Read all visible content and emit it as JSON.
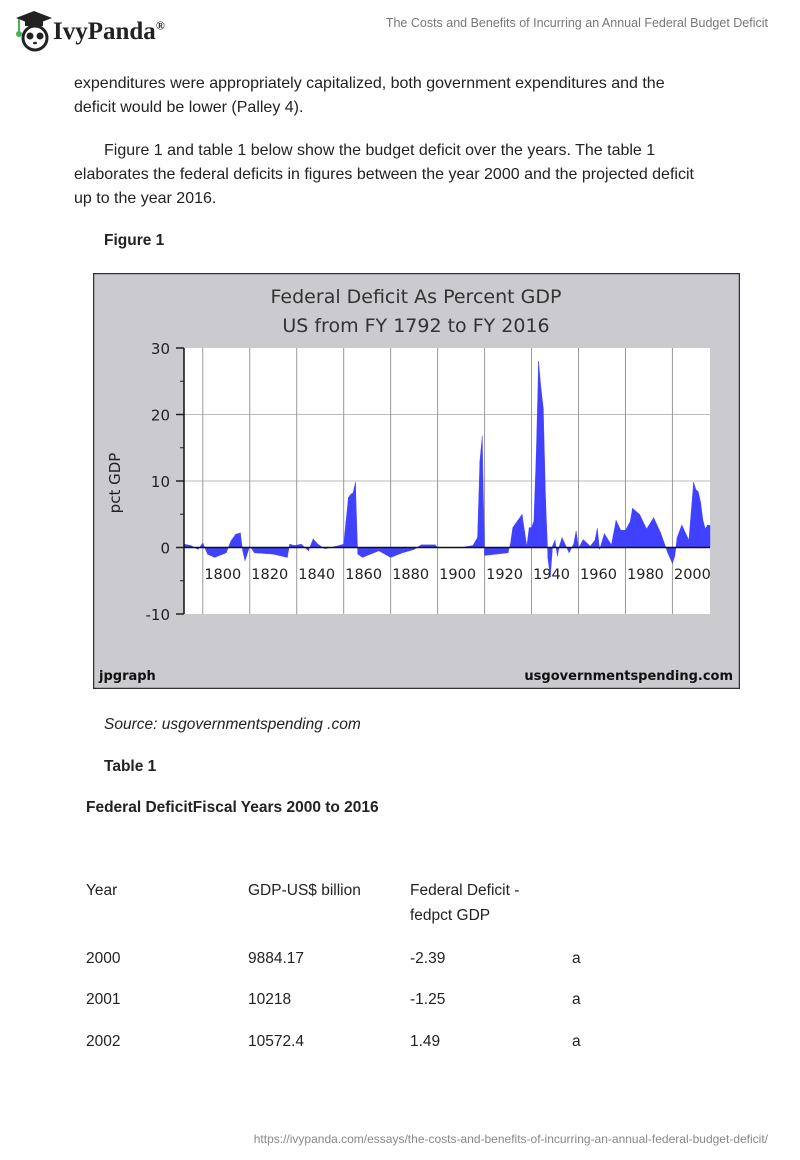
{
  "header": {
    "brand": "IvyPanda",
    "brand_mark": "®",
    "document_title": "The Costs and Benefits of Incurring an Annual Federal Budget Deficit"
  },
  "body": {
    "paragraph1_lines": [
      "expenditures were appropriately capitalized, both government expenditures and the",
      "deficit would be lower (Palley 4)."
    ],
    "paragraph2_lines": [
      "Figure 1 and table 1 below show the budget deficit over the years. The table 1",
      "elaborates the federal deficits in figures between the year 2000 and the projected deficit",
      "up to the year 2016."
    ],
    "figure_label": "Figure 1",
    "figure_source": "Source: usgovernmentspending .com",
    "table_label": "Table 1",
    "table_title": "Federal DeficitFiscal Years 2000 to 2016"
  },
  "table": {
    "headers": [
      "Year",
      "GDP-US$ billion",
      "Federal Deficit -",
      "fedpct GDP"
    ],
    "rows": [
      [
        "2000",
        "9884.17",
        "-2.39",
        "a"
      ],
      [
        "2001",
        "10218",
        "-1.25",
        "a"
      ],
      [
        "2002",
        "10572.4",
        "1.49",
        "a"
      ]
    ]
  },
  "footer": {
    "url": "https://ivypanda.com/essays/the-costs-and-benefits-of-incurring-an-annual-federal-budget-deficit/"
  },
  "chart_data": {
    "type": "area",
    "title": "Federal Deficit As Percent GDP",
    "subtitle": "US from FY 1792 to FY 2016",
    "ylabel": "pct GDP",
    "xlabel": "",
    "xlim": [
      1792,
      2016
    ],
    "ylim": [
      -10,
      30
    ],
    "yticks": [
      30,
      20,
      10,
      0,
      -10
    ],
    "xticks": [
      1800,
      1820,
      1840,
      1860,
      1880,
      1900,
      1920,
      1940,
      1960,
      1980,
      2000
    ],
    "grid": true,
    "fill_color": "#4040ff",
    "footer_left": "jpgraph",
    "footer_right": "usgovernmentspending.com",
    "x": [
      1792,
      1795,
      1798,
      1800,
      1802,
      1805,
      1810,
      1812,
      1814,
      1816,
      1817,
      1818,
      1820,
      1822,
      1830,
      1836,
      1837,
      1839,
      1842,
      1845,
      1847,
      1849,
      1852,
      1858,
      1860,
      1861,
      1862,
      1863,
      1864,
      1865,
      1866,
      1868,
      1870,
      1875,
      1880,
      1885,
      1890,
      1893,
      1899,
      1900,
      1910,
      1915,
      1917,
      1918,
      1919,
      1920,
      1925,
      1930,
      1931,
      1932,
      1934,
      1936,
      1937,
      1938,
      1939,
      1940,
      1941,
      1942,
      1943,
      1944,
      1945,
      1946,
      1947,
      1948,
      1949,
      1950,
      1951,
      1952,
      1953,
      1956,
      1958,
      1959,
      1960,
      1962,
      1965,
      1967,
      1968,
      1969,
      1971,
      1974,
      1976,
      1978,
      1980,
      1982,
      1983,
      1986,
      1989,
      1992,
      1995,
      1998,
      2000,
      2001,
      2002,
      2004,
      2007,
      2009,
      2010,
      2011,
      2012,
      2013,
      2014,
      2015,
      2016
    ],
    "y": [
      0.5,
      0.3,
      -0.3,
      0.7,
      -1,
      -1.5,
      -0.8,
      1,
      2,
      2.2,
      -0.5,
      -2,
      0.2,
      -0.8,
      -1,
      -1.5,
      0.5,
      0.3,
      0.5,
      -0.5,
      1.3,
      0.5,
      -0.2,
      0.3,
      0.5,
      4,
      7.5,
      8,
      8.2,
      9.8,
      -1,
      -1.5,
      -1.2,
      -0.5,
      -1.5,
      -0.8,
      -0.3,
      0.4,
      0.4,
      0,
      0,
      0.3,
      1.5,
      13,
      16.8,
      -1.2,
      -1,
      -0.8,
      0.5,
      3,
      4,
      5,
      2.5,
      0.2,
      3,
      3,
      4,
      14,
      28,
      24,
      21,
      7.2,
      -1.7,
      -4.5,
      0.3,
      1.1,
      -1.3,
      0.4,
      1.5,
      -0.8,
      0.6,
      2.5,
      -0.1,
      1.2,
      0.2,
      1.1,
      2.9,
      -0.3,
      2.1,
      0.4,
      4.1,
      2.6,
      2.6,
      3.9,
      5.9,
      5,
      2.8,
      4.5,
      2.2,
      -0.8,
      -2.4,
      -1.3,
      1.5,
      3.4,
      1.1,
      9.8,
      8.7,
      8.4,
      6.8,
      4.1,
      2.8,
      3.4,
      3.3
    ]
  }
}
